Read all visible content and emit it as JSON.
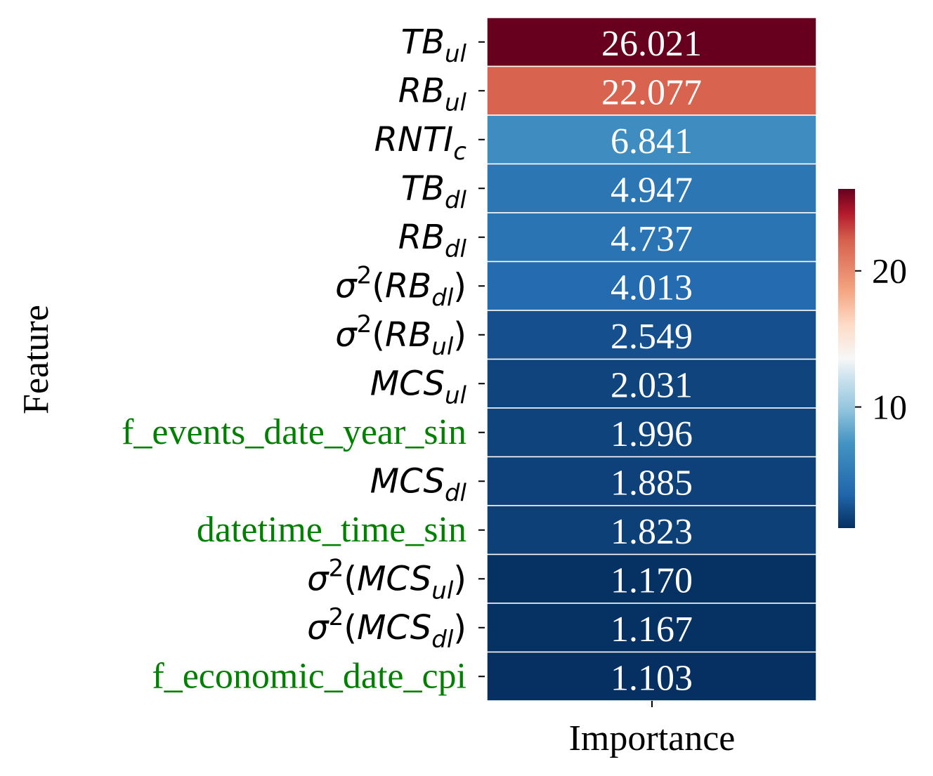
{
  "chart_data": {
    "type": "heatmap",
    "xlabel": "Importance",
    "ylabel": "Feature",
    "column_label": "Importance",
    "value_range": [
      1.103,
      26.021
    ],
    "colormap": "RdBu_r",
    "rows": [
      {
        "label_base": "TB",
        "label_sub": "ul",
        "label_sup": "",
        "wrap": false,
        "style": "math",
        "value": 26.021,
        "value_text": "26.021"
      },
      {
        "label_base": "RB",
        "label_sub": "ul",
        "label_sup": "",
        "wrap": false,
        "style": "math",
        "value": 22.077,
        "value_text": "22.077"
      },
      {
        "label_base": "RNTI",
        "label_sub": "c",
        "label_sup": "",
        "wrap": false,
        "style": "math",
        "value": 6.841,
        "value_text": "6.841"
      },
      {
        "label_base": "TB",
        "label_sub": "dl",
        "label_sup": "",
        "wrap": false,
        "style": "math",
        "value": 4.947,
        "value_text": "4.947"
      },
      {
        "label_base": "RB",
        "label_sub": "dl",
        "label_sup": "",
        "wrap": false,
        "style": "math",
        "value": 4.737,
        "value_text": "4.737"
      },
      {
        "label_base": "RB",
        "label_sub": "dl",
        "label_sup": "2",
        "wrap": true,
        "style": "math",
        "value": 4.013,
        "value_text": "4.013"
      },
      {
        "label_base": "RB",
        "label_sub": "ul",
        "label_sup": "2",
        "wrap": true,
        "style": "math",
        "value": 2.549,
        "value_text": "2.549"
      },
      {
        "label_base": "MCS",
        "label_sub": "ul",
        "label_sup": "",
        "wrap": false,
        "style": "math",
        "value": 2.031,
        "value_text": "2.031"
      },
      {
        "label_base": "f_events_date_year_sin",
        "label_sub": "",
        "label_sup": "",
        "wrap": false,
        "style": "text",
        "value": 1.996,
        "value_text": "1.996"
      },
      {
        "label_base": "MCS",
        "label_sub": "dl",
        "label_sup": "",
        "wrap": false,
        "style": "math",
        "value": 1.885,
        "value_text": "1.885"
      },
      {
        "label_base": "datetime_time_sin",
        "label_sub": "",
        "label_sup": "",
        "wrap": false,
        "style": "text",
        "value": 1.823,
        "value_text": "1.823"
      },
      {
        "label_base": "MCS",
        "label_sub": "ul",
        "label_sup": "2",
        "wrap": true,
        "style": "math",
        "value": 1.17,
        "value_text": "1.170"
      },
      {
        "label_base": "MCS",
        "label_sub": "dl",
        "label_sup": "2",
        "wrap": true,
        "style": "math",
        "value": 1.167,
        "value_text": "1.167"
      },
      {
        "label_base": "f_economic_date_cpi",
        "label_sub": "",
        "label_sup": "",
        "wrap": false,
        "style": "text",
        "value": 1.103,
        "value_text": "1.103"
      }
    ],
    "colorbar": {
      "ticks": [
        10,
        20
      ],
      "tick_labels": [
        "10",
        "20"
      ]
    },
    "colors": {
      "highlight_label": "#008000",
      "default_label": "#000000",
      "cell_text": "#ffffff",
      "cell_border": "#ffffff"
    }
  }
}
